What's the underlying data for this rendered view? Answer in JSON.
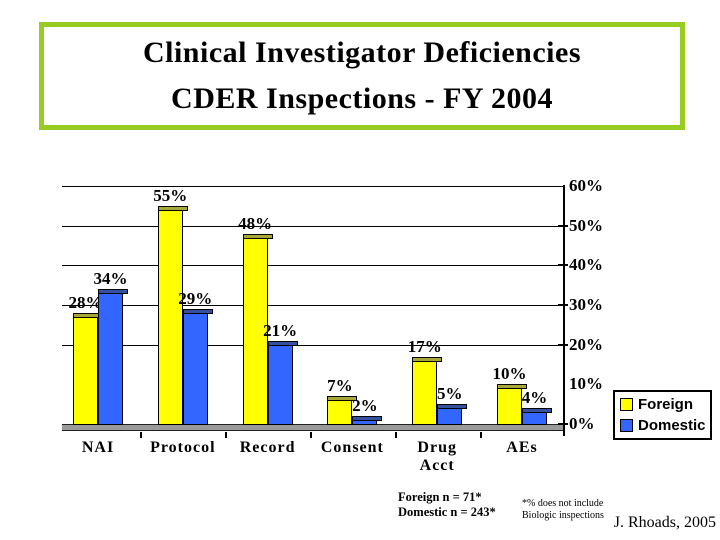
{
  "slide": {
    "title_line1": "Clinical Investigator Deficiencies",
    "title_line2": "CDER Inspections - FY 2004",
    "border_color": "#99cc22",
    "sample_note_line1": "Foreign n = 71*",
    "sample_note_line2": "Domestic n  = 243*",
    "footnote_line1": "*% does not include",
    "footnote_line2": "Biologic inspections",
    "credit": "J. Rhoads, 2005"
  },
  "chart_data": {
    "type": "bar",
    "title": "Clinical Investigator Deficiencies CDER Inspections - FY 2004",
    "categories": [
      "NAI",
      "Protocol",
      "Record",
      "Consent",
      "Drug Acct",
      "AEs"
    ],
    "series": [
      {
        "name": "Foreign",
        "color": "#ffff00",
        "cap_color": "#a8a838",
        "values": [
          28,
          55,
          48,
          7,
          17,
          10
        ]
      },
      {
        "name": "Domestic",
        "color": "#3366ff",
        "cap_color": "#33519e",
        "values": [
          34,
          29,
          21,
          2,
          5,
          4
        ]
      }
    ],
    "data_label_format": "percent",
    "xlabel": "",
    "ylabel": "",
    "ylim": [
      0,
      60
    ],
    "ytick_step": 10,
    "ytick_labels": [
      "0%",
      "10%",
      "20%",
      "30%",
      "40%",
      "50%",
      "60%"
    ],
    "gridlines_at": [
      20,
      30,
      40,
      50,
      60
    ],
    "axis_ticks_at": [
      0,
      20,
      30,
      40,
      50
    ],
    "grid": true,
    "axis_side": "right",
    "legend_position": "bottom-right",
    "base_strip_color": "#9a9a9a"
  }
}
